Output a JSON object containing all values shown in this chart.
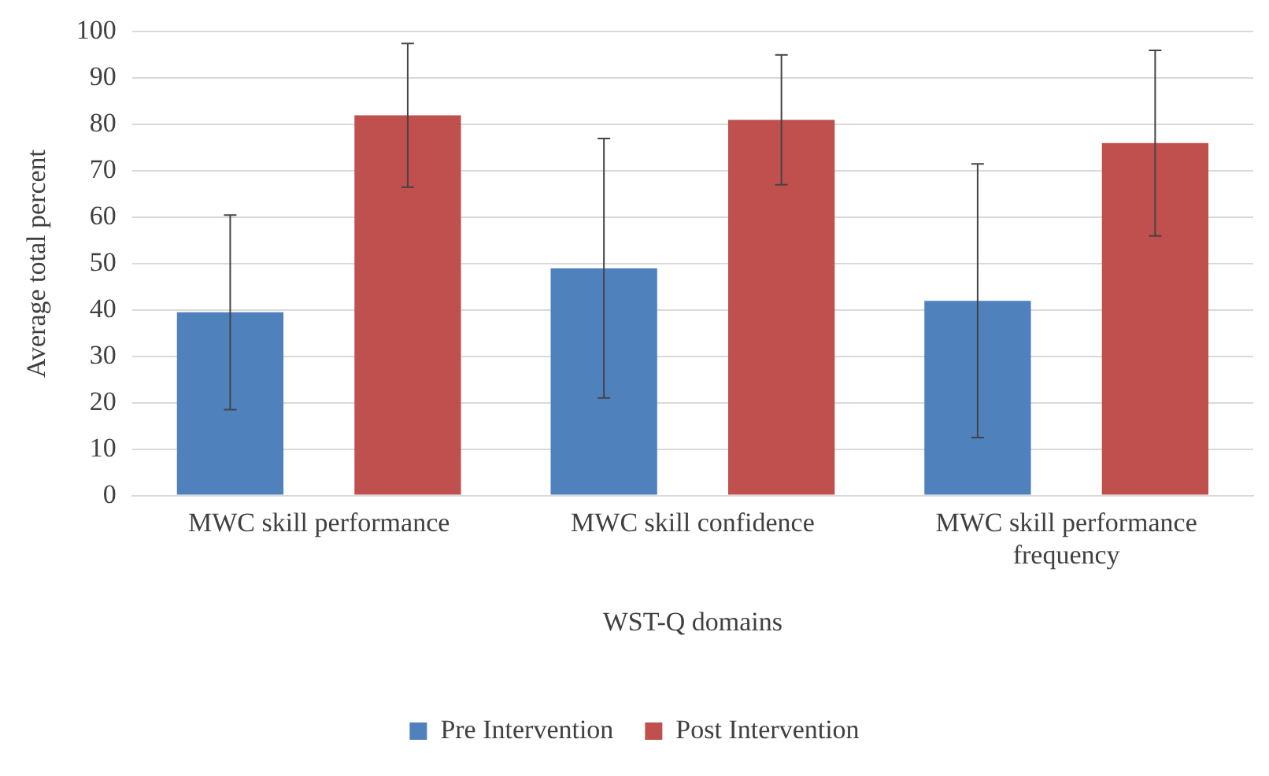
{
  "chart_data": {
    "type": "bar",
    "xlabel": "WST-Q domains",
    "ylabel": "Average total percent",
    "categories": [
      "MWC skill performance",
      "MWC skill confidence",
      "MWC skill performance frequency"
    ],
    "series": [
      {
        "name": "Pre Intervention",
        "color": "#4f81bd",
        "values": [
          39.5,
          49,
          42
        ],
        "errors": [
          21,
          28,
          29.5
        ]
      },
      {
        "name": "Post Intervention",
        "color": "#c0504d",
        "values": [
          82,
          81,
          76
        ],
        "errors": [
          15.5,
          14,
          20
        ]
      }
    ],
    "ylim": [
      0,
      100
    ],
    "yticks": [
      0,
      10,
      20,
      30,
      40,
      50,
      60,
      70,
      80,
      90,
      100
    ],
    "grid": "y",
    "legend": "bottom"
  }
}
